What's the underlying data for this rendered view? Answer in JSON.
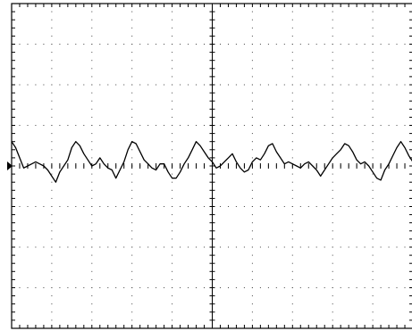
{
  "chart_data": {
    "type": "line",
    "title": "",
    "xlabel": "",
    "ylabel": "",
    "grid": true,
    "divisions": {
      "x": 10,
      "y": 8
    },
    "xlim": [
      0,
      10
    ],
    "ylim": [
      -4,
      4
    ],
    "series": [
      {
        "x": [
          0.0,
          0.1,
          0.2,
          0.3,
          0.4,
          0.5,
          0.6,
          0.7,
          0.8,
          0.9,
          1.0,
          1.1,
          1.2,
          1.3,
          1.4,
          1.5,
          1.6,
          1.7,
          1.8,
          1.9,
          2.0,
          2.1,
          2.2,
          2.3,
          2.4,
          2.5,
          2.6,
          2.7,
          2.8,
          2.9,
          3.0,
          3.1,
          3.2,
          3.3,
          3.4,
          3.5,
          3.6,
          3.7,
          3.8,
          3.9,
          4.0,
          4.1,
          4.2,
          4.3,
          4.4,
          4.5,
          4.6,
          4.7,
          4.8,
          4.9,
          5.0,
          5.1,
          5.2,
          5.3,
          5.4,
          5.5,
          5.6,
          5.7,
          5.8,
          5.9,
          6.0,
          6.1,
          6.2,
          6.3,
          6.4,
          6.5,
          6.6,
          6.7,
          6.8,
          6.9,
          7.0,
          7.1,
          7.2,
          7.3,
          7.4,
          7.5,
          7.6,
          7.7,
          7.8,
          7.9,
          8.0,
          8.1,
          8.2,
          8.3,
          8.4,
          8.5,
          8.6,
          8.7,
          8.8,
          8.9,
          9.0,
          9.1,
          9.2,
          9.3,
          9.4,
          9.5,
          9.6,
          9.7,
          9.8,
          9.9,
          10.0
        ],
        "values": [
          0.6,
          0.45,
          0.2,
          -0.05,
          0.0,
          0.05,
          0.1,
          0.05,
          0.0,
          -0.1,
          -0.25,
          -0.4,
          -0.15,
          0.0,
          0.15,
          0.45,
          0.6,
          0.5,
          0.3,
          0.15,
          0.0,
          0.05,
          0.2,
          0.05,
          -0.05,
          -0.1,
          -0.3,
          -0.1,
          0.1,
          0.4,
          0.6,
          0.55,
          0.35,
          0.15,
          0.05,
          -0.05,
          -0.1,
          0.05,
          0.05,
          -0.15,
          -0.3,
          -0.3,
          -0.15,
          0.05,
          0.2,
          0.4,
          0.6,
          0.5,
          0.35,
          0.2,
          0.1,
          -0.05,
          0.0,
          0.1,
          0.2,
          0.3,
          0.1,
          -0.05,
          -0.15,
          -0.1,
          0.1,
          0.2,
          0.15,
          0.3,
          0.5,
          0.55,
          0.35,
          0.2,
          0.05,
          0.1,
          0.05,
          0.0,
          -0.05,
          0.05,
          0.1,
          0.0,
          -0.1,
          -0.25,
          -0.1,
          0.05,
          0.2,
          0.3,
          0.4,
          0.55,
          0.5,
          0.35,
          0.15,
          0.05,
          0.1,
          0.0,
          -0.15,
          -0.3,
          -0.35,
          -0.1,
          0.05,
          0.25,
          0.45,
          0.6,
          0.45,
          0.25,
          0.1
        ]
      }
    ],
    "ground_marker": 0
  }
}
